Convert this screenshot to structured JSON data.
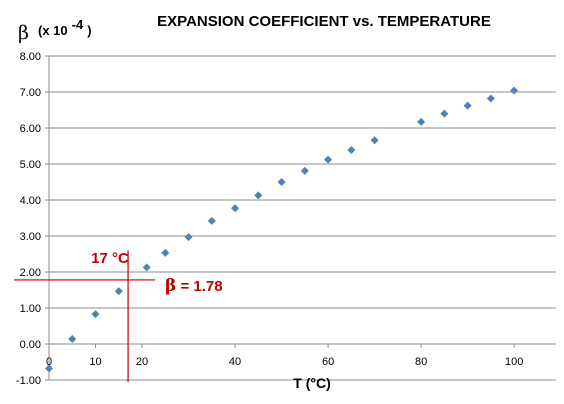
{
  "chart_data": {
    "type": "scatter",
    "title": "EXPANSION COEFFICIENT vs. TEMPERATURE",
    "ylabel_symbol": "β",
    "ylabel_unit_prefix": "(x 10",
    "ylabel_unit_exponent": "-4",
    "ylabel_unit_suffix": ")",
    "xlabel": "T (°C)",
    "xlim": [
      0,
      109
    ],
    "ylim": [
      -1,
      8
    ],
    "x_ticks": [
      0,
      10,
      20,
      40,
      60,
      80,
      100
    ],
    "x_tick_labels": [
      "0",
      "10",
      "20",
      "40",
      "60",
      "80",
      "100"
    ],
    "y_ticks": [
      -1,
      0,
      1,
      2,
      3,
      4,
      5,
      6,
      7,
      8
    ],
    "y_tick_labels": [
      "-1.00",
      "0.00",
      "1.00",
      "2.00",
      "3.00",
      "4.00",
      "5.00",
      "6.00",
      "7.00",
      "8.00"
    ],
    "grid": "horizontal",
    "marker": "diamond",
    "marker_color": "#4F81BD",
    "annotation_color": "#C00000",
    "series": [
      {
        "x": [
          0,
          5,
          10,
          15,
          21,
          25,
          30,
          35,
          40,
          45,
          50,
          55,
          60,
          65,
          70,
          80,
          85,
          90,
          95,
          100
        ],
        "y": [
          -0.68,
          0.14,
          0.83,
          1.47,
          2.13,
          2.53,
          2.97,
          3.42,
          3.77,
          4.13,
          4.5,
          4.81,
          5.12,
          5.39,
          5.66,
          6.17,
          6.4,
          6.62,
          6.82,
          7.04
        ]
      }
    ],
    "annotation": {
      "x_value": 17,
      "y_value": 1.78,
      "x_label": "17 °C",
      "beta_symbol": "β",
      "beta_text": " = 1.78"
    }
  }
}
